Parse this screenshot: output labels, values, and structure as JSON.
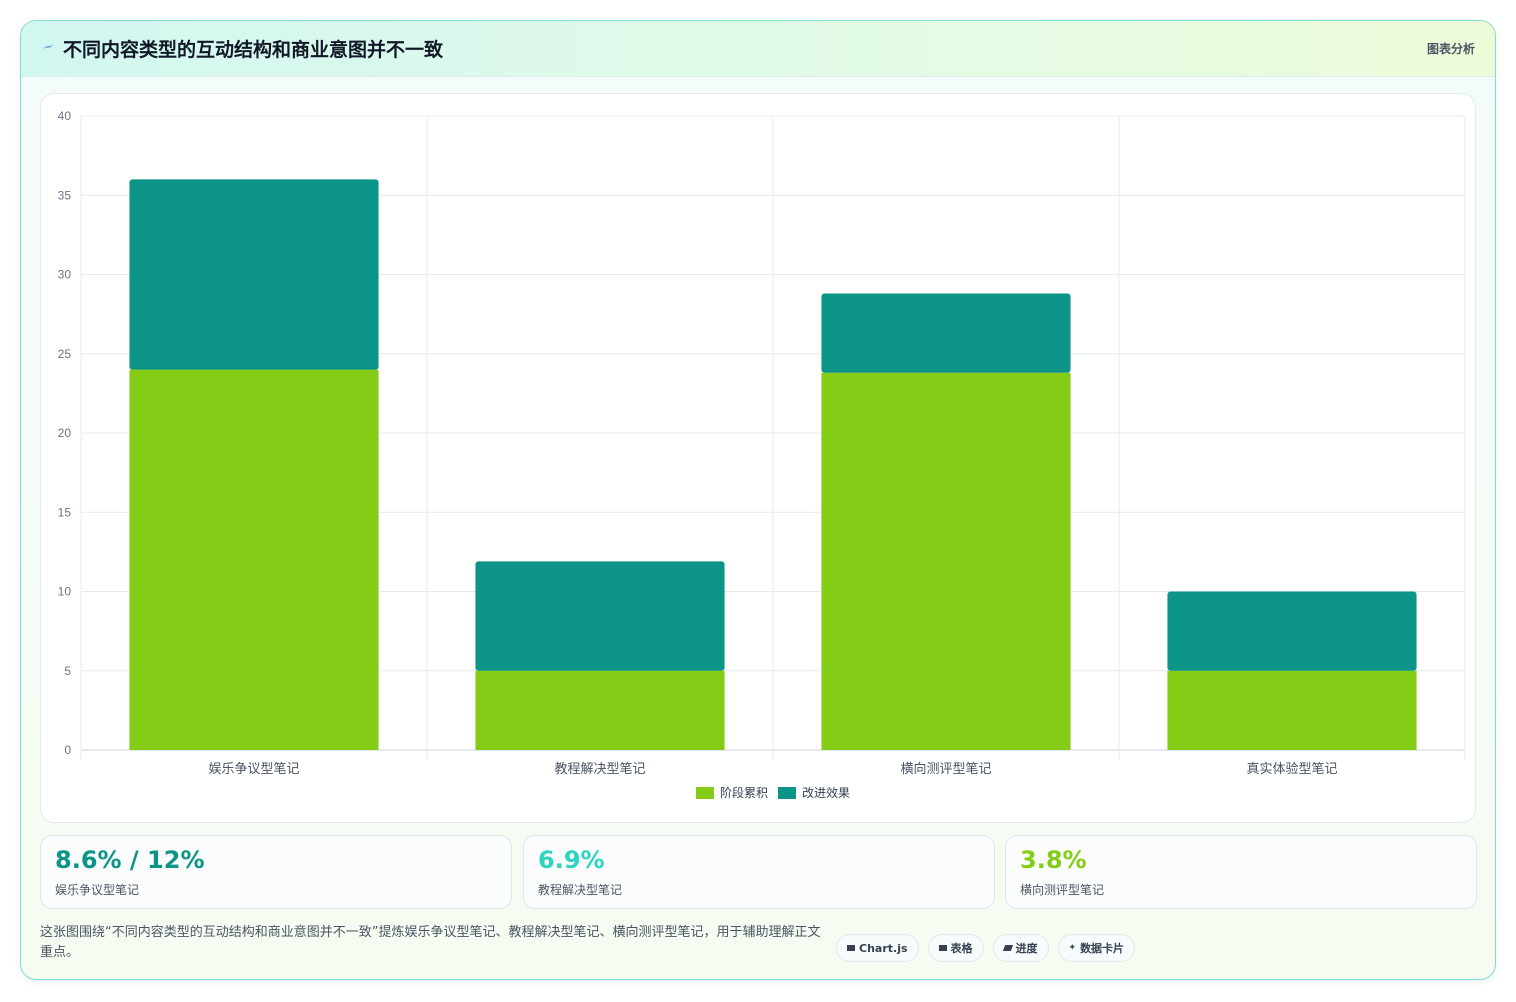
{
  "header": {
    "title": "不同内容类型的互动结构和商业意图并不一致",
    "tag": "图表分析"
  },
  "chart_data": {
    "type": "bar",
    "stacked": true,
    "categories": [
      "娱乐争议型笔记",
      "教程解决型笔记",
      "横向测评型笔记",
      "真实体验型笔记"
    ],
    "series": [
      {
        "name": "阶段累积",
        "color": "#84cc16",
        "values": [
          24,
          5,
          23.8,
          5
        ]
      },
      {
        "name": "改进效果",
        "color": "#0d9488",
        "values": [
          12,
          6.9,
          5,
          5
        ]
      }
    ],
    "ylim": [
      0,
      40
    ],
    "yticks": [
      0,
      5,
      10,
      15,
      20,
      25,
      30,
      35,
      40
    ],
    "grid": true,
    "legend": "bottom"
  },
  "stats": [
    {
      "value": "8.6% / 12%",
      "label": "娱乐争议型笔记",
      "color": "#0d9488"
    },
    {
      "value": "6.9%",
      "label": "教程解决型笔记",
      "color": "#2dd4bf"
    },
    {
      "value": "3.8%",
      "label": "横向测评型笔记",
      "color": "#84cc16"
    }
  ],
  "footer": {
    "text": "这张图围绕“不同内容类型的互动结构和商业意图并不一致”提炼娱乐争议型笔记、教程解决型笔记、横向测评型笔记，用于辅助理解正文重点。",
    "chips": [
      {
        "icon": "chart-icon",
        "label": "Chart.js"
      },
      {
        "icon": "table-icon",
        "label": "表格"
      },
      {
        "icon": "progress-icon",
        "label": "进度"
      },
      {
        "icon": "sparkle-icon",
        "label": "数据卡片"
      }
    ]
  }
}
